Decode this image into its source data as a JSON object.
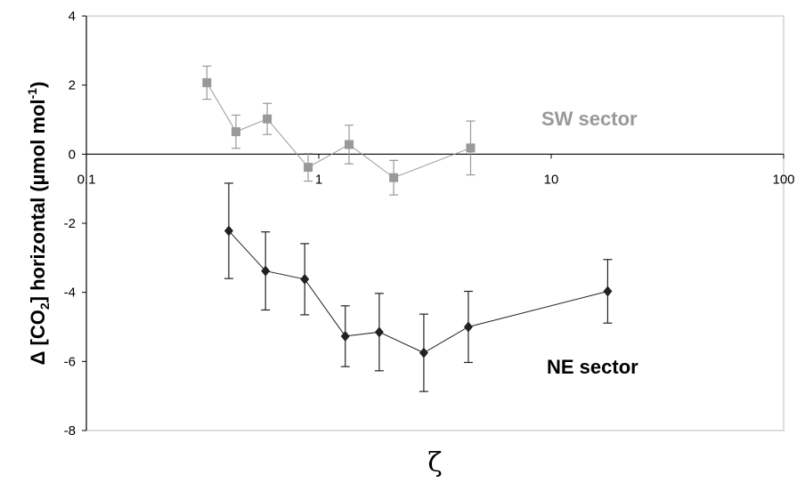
{
  "chart_data": {
    "type": "scatter",
    "xlabel": "ζ",
    "ylabel_parts": [
      "Δ [CO",
      "2",
      "] horizontal (µmol mol",
      "-1",
      ")"
    ],
    "x_scale": "log",
    "xlim": [
      0.1,
      100
    ],
    "ylim": [
      -8,
      4
    ],
    "x_ticks": [
      "0.1",
      "1",
      "10",
      "100"
    ],
    "y_ticks": [
      "4",
      "2",
      "0",
      "-2",
      "-4",
      "-6",
      "-8"
    ],
    "series": [
      {
        "name": "SW sector",
        "color": "#999999",
        "marker": "square",
        "points": [
          {
            "x": 0.33,
            "y": 2.07,
            "err": 0.48
          },
          {
            "x": 0.44,
            "y": 0.65,
            "err": 0.48
          },
          {
            "x": 0.6,
            "y": 1.02,
            "err": 0.45
          },
          {
            "x": 0.9,
            "y": -0.38,
            "err": 0.4
          },
          {
            "x": 1.35,
            "y": 0.28,
            "err": 0.56
          },
          {
            "x": 2.1,
            "y": -0.68,
            "err": 0.5
          },
          {
            "x": 4.5,
            "y": 0.18,
            "err": 0.78
          }
        ]
      },
      {
        "name": "NE sector",
        "color": "#222222",
        "marker": "diamond",
        "points": [
          {
            "x": 0.41,
            "y": -2.22,
            "err": 1.38
          },
          {
            "x": 0.59,
            "y": -3.38,
            "err": 1.13
          },
          {
            "x": 0.87,
            "y": -3.62,
            "err": 1.03
          },
          {
            "x": 1.3,
            "y": -5.27,
            "err": 0.88
          },
          {
            "x": 1.82,
            "y": -5.15,
            "err": 1.12
          },
          {
            "x": 2.83,
            "y": -5.75,
            "err": 1.12
          },
          {
            "x": 4.4,
            "y": -5.0,
            "err": 1.03
          },
          {
            "x": 17.5,
            "y": -3.97,
            "err": 0.92
          }
        ]
      }
    ],
    "annotations": [
      {
        "text": "SW sector",
        "color": "#999999"
      },
      {
        "text": "NE sector",
        "color": "#000000"
      }
    ]
  }
}
